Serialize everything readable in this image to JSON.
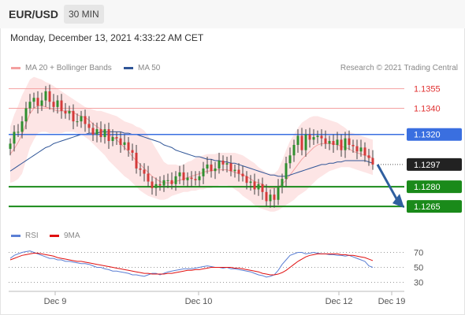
{
  "header": {
    "pair": "EUR/USD",
    "timeframe": "30 MIN"
  },
  "timestamp": "Monday, December 13, 2021 4:33:22 AM CET",
  "legend": {
    "ma20_label": "MA 20 + Bollinger Bands",
    "ma20_color": "#f08080",
    "ma50_label": "MA 50",
    "ma50_color": "#2f5597",
    "copyright": "Research © 2021 Trading Central"
  },
  "rsi_legend": {
    "rsi_label": "RSI",
    "rsi_color": "#5b7fd4",
    "ma_label": "9MA",
    "ma_color": "#e01010"
  },
  "chart_data": [
    {
      "type": "candlestick",
      "title": "EUR/USD",
      "ylim": [
        1.1253,
        1.1365
      ],
      "x_ticks": [
        "Dec 9",
        "Dec 10",
        "Dec 12",
        "Dec 19"
      ],
      "levels": [
        {
          "value": 1.1355,
          "label": "1.1355",
          "style": "resistance",
          "color": "#e03030"
        },
        {
          "value": 1.134,
          "label": "1.1340",
          "style": "resistance",
          "color": "#e03030"
        },
        {
          "value": 1.132,
          "label": "1.1320",
          "style": "pivot",
          "color": "#3a6fe0"
        },
        {
          "value": 1.1297,
          "label": "1.1297",
          "style": "last",
          "color": "#222222"
        },
        {
          "value": 1.128,
          "label": "1.1280",
          "style": "support",
          "color": "#1a8a1a"
        },
        {
          "value": 1.1265,
          "label": "1.1265",
          "style": "support",
          "color": "#1a8a1a"
        }
      ],
      "close": [
        1.1313,
        1.1322,
        1.1322,
        1.133,
        1.134,
        1.1345,
        1.1348,
        1.1342,
        1.1346,
        1.1353,
        1.1345,
        1.1341,
        1.1346,
        1.1338,
        1.1336,
        1.1338,
        1.133,
        1.133,
        1.1334,
        1.1328,
        1.1325,
        1.132,
        1.1324,
        1.1318,
        1.1324,
        1.1315,
        1.1318,
        1.1317,
        1.1312,
        1.1314,
        1.1308,
        1.1306,
        1.1294,
        1.1293,
        1.129,
        1.1284,
        1.1279,
        1.1282,
        1.1281,
        1.1285,
        1.1285,
        1.1282,
        1.1288,
        1.1291,
        1.1285,
        1.1287,
        1.1286,
        1.1285,
        1.1288,
        1.1294,
        1.1297,
        1.1292,
        1.1294,
        1.13,
        1.1297,
        1.1298,
        1.1292,
        1.1293,
        1.129,
        1.1288,
        1.1283,
        1.1284,
        1.1278,
        1.1282,
        1.1276,
        1.1269,
        1.1274,
        1.127,
        1.128,
        1.1286,
        1.1298,
        1.1304,
        1.1312,
        1.1319,
        1.1308,
        1.132,
        1.1316,
        1.1318,
        1.1319,
        1.1317,
        1.1313,
        1.1315,
        1.1312,
        1.1316,
        1.1308,
        1.1317,
        1.1312,
        1.1311,
        1.1307,
        1.131,
        1.1304,
        1.1302,
        1.1297
      ],
      "ma20": [
        1.1305,
        1.1309,
        1.1314,
        1.132,
        1.1328,
        1.1336,
        1.134,
        1.1342,
        1.1342,
        1.1341,
        1.134,
        1.1339,
        1.1338,
        1.1338,
        1.1338,
        1.1338,
        1.1337,
        1.1335,
        1.1334,
        1.1333,
        1.1331,
        1.1328,
        1.1326,
        1.1324,
        1.1322,
        1.132,
        1.1318,
        1.1316,
        1.1313,
        1.131,
        1.1307,
        1.1303,
        1.13,
        1.1297,
        1.1294,
        1.1291,
        1.1288,
        1.1286,
        1.1284,
        1.1283,
        1.1283,
        1.1283,
        1.1284,
        1.1285,
        1.1286,
        1.1287,
        1.1288,
        1.1289,
        1.129,
        1.1291,
        1.1292,
        1.1292,
        1.1293,
        1.1293,
        1.1293,
        1.1293,
        1.1292,
        1.1291,
        1.129,
        1.1289,
        1.1288,
        1.1286,
        1.1284,
        1.1283,
        1.1282,
        1.128,
        1.1279,
        1.1279,
        1.128,
        1.1282,
        1.1285,
        1.1289,
        1.1293,
        1.1297,
        1.1301,
        1.1304,
        1.1307,
        1.131,
        1.1312,
        1.1313,
        1.1313,
        1.1313,
        1.1313,
        1.1312,
        1.1311,
        1.131,
        1.1309,
        1.1307,
        1.1306,
        1.1305,
        1.1304,
        1.1303,
        1.1302
      ],
      "bb_upper": [
        1.1326,
        1.1335,
        1.1342,
        1.135,
        1.1356,
        1.1362,
        1.1364,
        1.1363,
        1.1362,
        1.136,
        1.1359,
        1.1357,
        1.1355,
        1.1353,
        1.1351,
        1.1349,
        1.1347,
        1.1345,
        1.1343,
        1.1341,
        1.134,
        1.1339,
        1.1338,
        1.1338,
        1.1337,
        1.1336,
        1.1335,
        1.1334,
        1.1332,
        1.133,
        1.1329,
        1.1328,
        1.1326,
        1.1325,
        1.1323,
        1.1319,
        1.1314,
        1.1309,
        1.1304,
        1.1299,
        1.1297,
        1.1297,
        1.1297,
        1.1296,
        1.1297,
        1.1299,
        1.13,
        1.1302,
        1.1303,
        1.1304,
        1.1305,
        1.1305,
        1.1305,
        1.1306,
        1.1306,
        1.1306,
        1.1306,
        1.1306,
        1.1305,
        1.1304,
        1.1302,
        1.13,
        1.1298,
        1.1295,
        1.1293,
        1.1291,
        1.129,
        1.129,
        1.1293,
        1.13,
        1.1308,
        1.1315,
        1.132,
        1.1325,
        1.1329,
        1.1331,
        1.1333,
        1.1334,
        1.1334,
        1.1333,
        1.1332,
        1.1331,
        1.133,
        1.1329,
        1.1327,
        1.1325,
        1.1322,
        1.1321,
        1.132,
        1.1319,
        1.1318,
        1.1317,
        1.1316
      ],
      "bb_lower": [
        1.1283,
        1.1284,
        1.1286,
        1.129,
        1.13,
        1.131,
        1.1316,
        1.1321,
        1.1322,
        1.1322,
        1.1321,
        1.1321,
        1.1321,
        1.1321,
        1.1322,
        1.1322,
        1.1322,
        1.1321,
        1.132,
        1.1318,
        1.1316,
        1.1313,
        1.131,
        1.1307,
        1.1304,
        1.13,
        1.1297,
        1.1294,
        1.1291,
        1.1288,
        1.1286,
        1.1283,
        1.128,
        1.1277,
        1.1275,
        1.1273,
        1.1272,
        1.1271,
        1.127,
        1.127,
        1.1271,
        1.1273,
        1.1274,
        1.1275,
        1.1276,
        1.1276,
        1.1277,
        1.1277,
        1.1278,
        1.1278,
        1.1279,
        1.1279,
        1.128,
        1.1281,
        1.1281,
        1.1281,
        1.128,
        1.1278,
        1.1276,
        1.1273,
        1.1271,
        1.1269,
        1.1266,
        1.1264,
        1.1263,
        1.1262,
        1.1261,
        1.1261,
        1.1262,
        1.1264,
        1.1266,
        1.1268,
        1.127,
        1.1273,
        1.1275,
        1.1277,
        1.128,
        1.1283,
        1.1286,
        1.1288,
        1.129,
        1.1292,
        1.1293,
        1.1294,
        1.1295,
        1.1295,
        1.1295,
        1.1294,
        1.1293,
        1.1292,
        1.1291,
        1.129,
        1.1289
      ],
      "ma50": [
        1.1292,
        1.1294,
        1.1296,
        1.1298,
        1.13,
        1.1302,
        1.1304,
        1.1306,
        1.1308,
        1.131,
        1.1311,
        1.1313,
        1.1314,
        1.1315,
        1.1316,
        1.1317,
        1.1318,
        1.1319,
        1.132,
        1.132,
        1.1321,
        1.1321,
        1.1321,
        1.1322,
        1.1322,
        1.1322,
        1.1322,
        1.1322,
        1.1322,
        1.1321,
        1.1321,
        1.132,
        1.132,
        1.1319,
        1.1318,
        1.1317,
        1.1316,
        1.1315,
        1.1314,
        1.1312,
        1.1311,
        1.131,
        1.1308,
        1.1307,
        1.1306,
        1.1305,
        1.1304,
        1.1303,
        1.1303,
        1.1302,
        1.1301,
        1.1301,
        1.13,
        1.13,
        1.1299,
        1.1299,
        1.1298,
        1.1298,
        1.1297,
        1.1296,
        1.1295,
        1.1294,
        1.1293,
        1.1292,
        1.1291,
        1.129,
        1.1289,
        1.1289,
        1.1288,
        1.1288,
        1.1288,
        1.1289,
        1.129,
        1.1291,
        1.1292,
        1.1293,
        1.1294,
        1.1295,
        1.1296,
        1.1297,
        1.1297,
        1.1298,
        1.1298,
        1.1299,
        1.1299,
        1.13,
        1.13,
        1.13,
        1.13,
        1.13,
        1.13,
        1.1299,
        1.1298
      ],
      "forecast": {
        "from": 1.1297,
        "to": 1.1265
      }
    },
    {
      "type": "line",
      "title": "RSI",
      "ylim": [
        20,
        80
      ],
      "y_ticks": [
        70,
        50,
        30
      ],
      "series": [
        {
          "name": "RSI",
          "values": [
            62,
            66,
            68,
            70,
            71,
            72,
            70,
            68,
            66,
            64,
            62,
            62,
            60,
            60,
            58,
            58,
            57,
            56,
            55,
            55,
            54,
            52,
            50,
            50,
            48,
            47,
            45,
            45,
            44,
            43,
            42,
            40,
            40,
            39,
            38,
            40,
            42,
            42,
            40,
            42,
            44,
            45,
            46,
            47,
            48,
            48,
            48,
            49,
            50,
            51,
            52,
            51,
            50,
            50,
            49,
            50,
            48,
            48,
            47,
            46,
            45,
            44,
            42,
            40,
            39,
            37,
            38,
            40,
            46,
            54,
            60,
            66,
            68,
            70,
            70,
            68,
            69,
            70,
            69,
            68,
            68,
            67,
            67,
            66,
            66,
            65,
            66,
            64,
            62,
            60,
            58,
            52,
            50
          ]
        },
        {
          "name": "9MA",
          "values": [
            60,
            62,
            64,
            66,
            67,
            68,
            69,
            69,
            68,
            67,
            66,
            65,
            63,
            62,
            61,
            60,
            59,
            58,
            58,
            57,
            56,
            55,
            54,
            53,
            52,
            51,
            50,
            49,
            48,
            47,
            46,
            45,
            44,
            43,
            42,
            42,
            41,
            41,
            41,
            41,
            42,
            42,
            43,
            44,
            45,
            46,
            46,
            47,
            47,
            48,
            49,
            50,
            50,
            50,
            50,
            50,
            50,
            49,
            49,
            48,
            47,
            46,
            45,
            44,
            42,
            41,
            40,
            40,
            41,
            43,
            46,
            50,
            54,
            58,
            61,
            64,
            66,
            67,
            68,
            68,
            68,
            68,
            68,
            68,
            67,
            67,
            66,
            66,
            65,
            64,
            63,
            61,
            59
          ]
        }
      ]
    }
  ]
}
